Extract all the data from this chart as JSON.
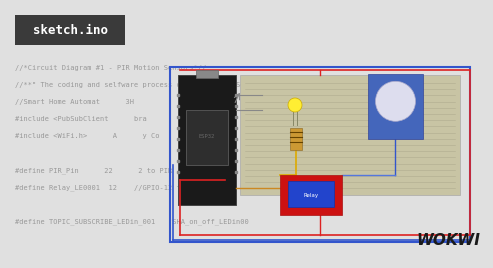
{
  "bg_color": "#e0e0e0",
  "text_color": "#999999",
  "title_bg": "#3a3a3a",
  "title_text": "sketch.ino",
  "title_text_color": "#ffffff",
  "code_lines": [
    "//*Circuit Diagram #1 - PIR Motion Sensors*//",
    "//**\" The coding and selfware process of PIR      n Sensors in smart h",
    "//Smart Home Automat      3H",
    "#include <PubSubClient      bra",
    "#include <WiFi.h>      A      y Co",
    "",
    "#define PIR_Pin      22      2 to PIR",
    "#define Relay_LE0001  12    //GPIO-12 to 1st-LEDin",
    "",
    "#define TOPIC_SUBSCRIBE_LEDin_001   \"SHA_on_off_LEDin00"
  ],
  "wokwi_text": "WOKWI",
  "wokwi_color": "#1a1a1a",
  "wire_red": "#dd2222",
  "wire_blue": "#3355cc",
  "wire_yellow": "#ddaa00",
  "wire_orange": "#cc8822",
  "breadboard_color": "#c8c4a4",
  "breadboard_line_color": "#b0ac90",
  "esp32_body": "#1a1a1a",
  "esp32_chip": "#3a3a3a",
  "pir_body": "#5577cc",
  "pir_dome": "#8899dd",
  "relay_red": "#cc1111",
  "relay_blue": "#2244cc",
  "led_color": "#ffee33",
  "resistor_color": "#cc9933"
}
